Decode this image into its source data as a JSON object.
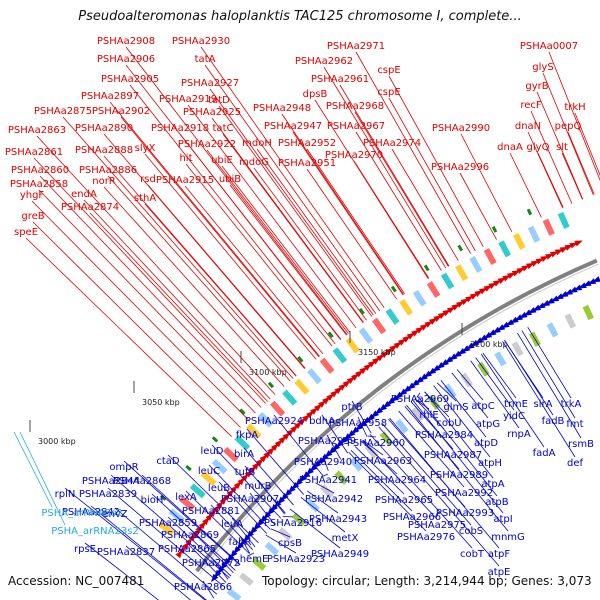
{
  "title": "Pseudoalteromonas haloplanktis TAC125 chromosome I, complete...",
  "footer": {
    "accession": "Accession: NC_007481",
    "topology": "Topology: circular; Length: 3,214,944 bp; Genes: 3,073"
  },
  "colors": {
    "forward": "#e00000",
    "reverse": "#0000cc",
    "rna": "#22aadd",
    "backbone": "#808080",
    "marker": "#118811"
  },
  "ticks": [
    "3000 kbp",
    "3050 kbp",
    "3100 kbp",
    "3150 kbp",
    "3200 kbp"
  ],
  "forward_labels": [
    "PSHAa2908",
    "PSHAa2930",
    "PSHAa2906",
    "tatA",
    "PSHAa2971",
    "PSHAa0007",
    "PSHAa2962",
    "PSHAa2905",
    "PSHAa2927",
    "PSHAa2961",
    "cspE",
    "glyS",
    "PSHAa2897",
    "PSHAa2919",
    "tatD",
    "dpsB",
    "cspE",
    "gyrB",
    "PSHAa2875",
    "PSHAa2902",
    "PSHAa2925",
    "PSHAa2948",
    "PSHAa2968",
    "recF",
    "trkH",
    "PSHAa2863",
    "PSHAa2890",
    "PSHAa2918",
    "tatC",
    "PSHAa2947",
    "PSHAa2967",
    "PSHAa2990",
    "dnaN",
    "pepQ",
    "slyX",
    "PSHAa2922",
    "mdoH",
    "PSHAa2974",
    "PSHAa2952",
    "dnaA",
    "glyQ",
    "slt",
    "PSHAa2861",
    "PSHAa2888",
    "hit",
    "ubiE",
    "mdoG",
    "PSHAa2951",
    "PSHAa2970",
    "PSHAa2860",
    "PSHAa2886",
    "rsd",
    "PSHAa2915",
    "ubiB",
    "PSHAa2996",
    "PSHAa2858",
    "norR",
    "yhgF",
    "endA",
    "sthA",
    "PSHAa2874",
    "greB",
    "speE"
  ],
  "reverse_labels": [
    "ompR",
    "rplN",
    "PSHAa2844",
    "PSHAa2839",
    "bioH",
    "PSHAa2868",
    "PSHAa2842",
    "envZ",
    "rpsE",
    "PSHAa2837",
    "PSHAa2859",
    "PSHAa2869",
    "PSHAa2865",
    "PSHAa2872",
    "PSHAa2866",
    "ctaD",
    "leuD",
    "leuC",
    "leuB",
    "leuA",
    "lexA",
    "PSHAa2881",
    "fkpA",
    "birA",
    "tufB",
    "murB",
    "PSHAa2907",
    "fabR",
    "hemE",
    "PSHAa2924",
    "PSHAa2916",
    "cpsB",
    "PSHAa2923",
    "bdhA",
    "PSHAa2939",
    "PSHAa2940",
    "PSHAa2941",
    "PSHAa2942",
    "PSHAa2943",
    "metX",
    "PSHAa2949",
    "ptrB",
    "PSHAa2958",
    "PSHAa2960",
    "PSHAa2963",
    "PSHAa2964",
    "PSHAa2965",
    "PSHAa2966",
    "PSHAa2969",
    "rhlE",
    "PSHAa2976",
    "PSHAa2975",
    "glmS",
    "PSHAa2984",
    "PSHAa2987",
    "PSHAa2989",
    "cobU",
    "PSHAa2992",
    "PSHAa2993",
    "cobS",
    "cobT",
    "atpC",
    "atpG",
    "atpD",
    "atpH",
    "atpA",
    "atpB",
    "atpI",
    "mnmG",
    "atpF",
    "atpE",
    "trmE",
    "yidC",
    "rnpA",
    "sirA",
    "fadB",
    "fadA",
    "trkA",
    "fmt",
    "rsmB",
    "def"
  ],
  "rna_labels": [
    "PSHA_arRNA5s2",
    "PSHA_arRNA23s2"
  ]
}
